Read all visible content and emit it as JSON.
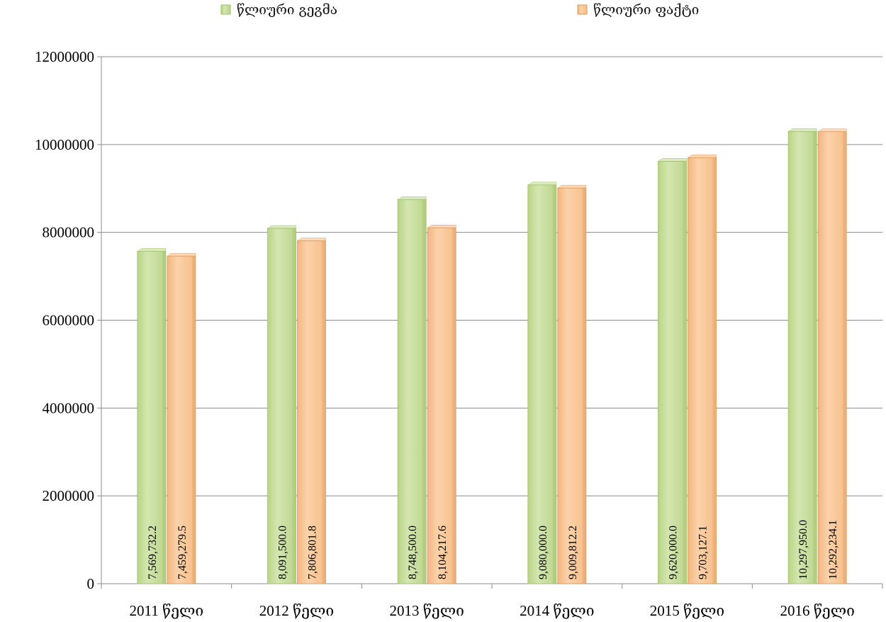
{
  "chart_data": {
    "type": "bar",
    "categories": [
      "2011 წელი",
      "2012 წელი",
      "2013 წელი",
      "2014 წელი",
      "2015 წელი",
      "2016 წელი"
    ],
    "series": [
      {
        "name": "წლიური გეგმა",
        "values": [
          7569732.2,
          8091500.0,
          8748500.0,
          9080000.0,
          9620000.0,
          10297950.0
        ],
        "labels": [
          "7,569,732.2",
          "8,091,500.0",
          "8,748,500.0",
          "9,080,000.0",
          "9,620,000.0",
          "10,297,950.0"
        ],
        "color": "#c5dc9a"
      },
      {
        "name": "წლიური ფაქტი",
        "values": [
          7459279.5,
          7806801.8,
          8104217.6,
          9009812.2,
          9703127.1,
          10292234.1
        ],
        "labels": [
          "7,459,279.5",
          "7,806,801.8",
          "8,104,217.6",
          "9,009,812.2",
          "9,703,127.1",
          "10,292,234.1"
        ],
        "color": "#f8c494"
      }
    ],
    "yticks": [
      "0",
      "2000000",
      "4000000",
      "6000000",
      "8000000",
      "10000000",
      "12000000"
    ],
    "ylim": [
      0,
      12000000
    ],
    "grid": true,
    "legend_position": "top"
  }
}
